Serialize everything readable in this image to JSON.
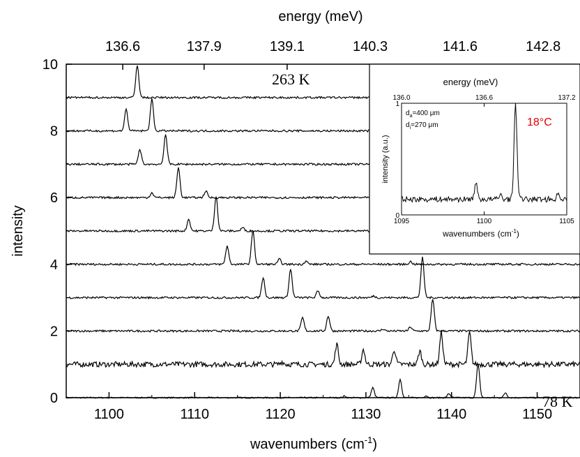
{
  "chart_data": [
    {
      "type": "line",
      "title": "",
      "xlabel": "wavenumbers",
      "xlabel_unit": "(cm",
      "xlabel_unit_exp": "-1",
      "xlabel_unit_close": ")",
      "ylabel": "intensity",
      "top_axis_label": "energy (meV)",
      "xlim": [
        1095,
        1155
      ],
      "ylim": [
        0,
        10
      ],
      "x_ticks": [
        1100,
        1110,
        1120,
        1130,
        1140,
        1150
      ],
      "x_tick_labels": [
        "1100",
        "1110",
        "1120",
        "1130",
        "1140",
        "1150"
      ],
      "y_ticks": [
        0,
        2,
        4,
        6,
        8,
        10
      ],
      "y_tick_labels": [
        "0",
        "2",
        "4",
        "6",
        "8",
        "10"
      ],
      "top_ticks": [
        1101.6,
        1111.1,
        1120.8,
        1130.5,
        1141.0,
        1150.7
      ],
      "top_tick_labels": [
        "136.6",
        "137.9",
        "139.1",
        "140.3",
        "141.6",
        "142.8"
      ],
      "annotations": [
        {
          "text": "263 K",
          "x": 1125,
          "y": 9.45
        },
        {
          "text": "78 K",
          "x": 1153,
          "y": 0.35
        }
      ],
      "series_color": "#000000",
      "series": [
        {
          "offset": 0,
          "noise": 0.02,
          "peaks": [
            [
              1130.8,
              0.3
            ],
            [
              1134.0,
              0.55
            ],
            [
              1137.0,
              0.06
            ],
            [
              1139.7,
              0.12
            ],
            [
              1143.1,
              1.0
            ],
            [
              1146.3,
              0.15
            ],
            [
              1127.5,
              0.05
            ]
          ]
        },
        {
          "offset": 1,
          "noise": 0.08,
          "peaks": [
            [
              1126.6,
              0.6
            ],
            [
              1129.7,
              0.45
            ],
            [
              1133.3,
              0.45
            ],
            [
              1136.3,
              0.4
            ],
            [
              1138.8,
              0.95
            ],
            [
              1142.1,
              0.95
            ],
            [
              1120.2,
              0.08
            ]
          ]
        },
        {
          "offset": 2,
          "noise": 0.03,
          "peaks": [
            [
              1122.6,
              0.4
            ],
            [
              1125.6,
              0.45
            ],
            [
              1135.2,
              0.12
            ],
            [
              1137.8,
              0.95
            ],
            [
              1132.0,
              0.06
            ]
          ]
        },
        {
          "offset": 3,
          "noise": 0.03,
          "peaks": [
            [
              1118.0,
              0.6
            ],
            [
              1121.2,
              0.85
            ],
            [
              1124.4,
              0.2
            ],
            [
              1130.9,
              0.05
            ],
            [
              1136.6,
              1.2
            ]
          ]
        },
        {
          "offset": 4,
          "noise": 0.03,
          "peaks": [
            [
              1113.8,
              0.55
            ],
            [
              1116.8,
              1.0
            ],
            [
              1119.9,
              0.15
            ],
            [
              1123.0,
              0.1
            ],
            [
              1135.2,
              0.08
            ]
          ]
        },
        {
          "offset": 5,
          "noise": 0.03,
          "peaks": [
            [
              1109.3,
              0.35
            ],
            [
              1112.5,
              1.05
            ],
            [
              1115.6,
              0.1
            ]
          ]
        },
        {
          "offset": 6,
          "noise": 0.03,
          "peaks": [
            [
              1105.0,
              0.15
            ],
            [
              1108.1,
              0.9
            ],
            [
              1111.3,
              0.2
            ]
          ]
        },
        {
          "offset": 7,
          "noise": 0.03,
          "peaks": [
            [
              1103.6,
              0.45
            ],
            [
              1106.6,
              0.9
            ]
          ]
        },
        {
          "offset": 8,
          "noise": 0.03,
          "peaks": [
            [
              1102.0,
              0.65
            ],
            [
              1105.0,
              0.95
            ]
          ]
        },
        {
          "offset": 9,
          "noise": 0.03,
          "peaks": [
            [
              1103.3,
              0.98
            ]
          ]
        }
      ]
    },
    {
      "type": "line",
      "title": "",
      "xlabel": "wavenumbers",
      "xlabel_unit": "(cm",
      "xlabel_unit_exp": "-1",
      "xlabel_unit_close": ")",
      "ylabel": "intensity (a.u.)",
      "top_axis_label": "energy (meV)",
      "xlim": [
        1095,
        1105
      ],
      "ylim": [
        0,
        1
      ],
      "x_ticks": [
        1095,
        1100,
        1105
      ],
      "x_tick_labels": [
        "1095",
        "1100",
        "1105"
      ],
      "y_ticks": [
        0,
        1
      ],
      "y_tick_labels": [
        "0",
        "1"
      ],
      "top_ticks": [
        1095,
        1100,
        1105
      ],
      "top_tick_labels": [
        "136.0",
        "136.6",
        "137.2"
      ],
      "legend_lines": [
        {
          "prefix": "d",
          "subscript": "a",
          "suffix": "=400 μm"
        },
        {
          "prefix": "d",
          "subscript": "i",
          "suffix": "=270 μm"
        }
      ],
      "label_temperature": "18°C",
      "label_color": "#e00000",
      "series": [
        {
          "baseline": 0.14,
          "noise": 0.025,
          "peaks": [
            [
              1099.5,
              0.14
            ],
            [
              1101.9,
              0.85
            ],
            [
              1101.0,
              0.04
            ],
            [
              1104.5,
              0.05
            ]
          ]
        }
      ]
    }
  ]
}
